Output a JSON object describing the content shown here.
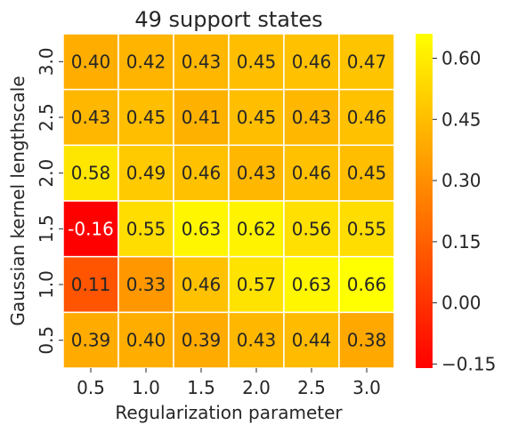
{
  "chart_data": {
    "type": "heatmap",
    "title": "49 support states",
    "xlabel": "Regularization parameter",
    "ylabel": "Gaussian kernel lengthscale",
    "x_categories": [
      "0.5",
      "1.0",
      "1.5",
      "2.0",
      "2.5",
      "3.0"
    ],
    "y_categories": [
      "3.0",
      "2.5",
      "2.0",
      "1.5",
      "1.0",
      "0.5"
    ],
    "values": [
      [
        0.4,
        0.42,
        0.43,
        0.45,
        0.46,
        0.47
      ],
      [
        0.43,
        0.45,
        0.41,
        0.45,
        0.43,
        0.46
      ],
      [
        0.58,
        0.49,
        0.46,
        0.43,
        0.46,
        0.45
      ],
      [
        -0.16,
        0.55,
        0.63,
        0.62,
        0.56,
        0.55
      ],
      [
        0.11,
        0.33,
        0.46,
        0.57,
        0.63,
        0.66
      ],
      [
        0.39,
        0.4,
        0.39,
        0.43,
        0.44,
        0.38
      ]
    ],
    "labels": [
      [
        "0.40",
        "0.42",
        "0.43",
        "0.45",
        "0.46",
        "0.47"
      ],
      [
        "0.43",
        "0.45",
        "0.41",
        "0.45",
        "0.43",
        "0.46"
      ],
      [
        "0.58",
        "0.49",
        "0.46",
        "0.43",
        "0.46",
        "0.45"
      ],
      [
        "-0.16",
        "0.55",
        "0.63",
        "0.62",
        "0.56",
        "0.55"
      ],
      [
        "0.11",
        "0.33",
        "0.46",
        "0.57",
        "0.63",
        "0.66"
      ],
      [
        "0.39",
        "0.40",
        "0.39",
        "0.43",
        "0.44",
        "0.38"
      ]
    ],
    "colormap": "autumn",
    "colorbar_range": [
      -0.16,
      0.66
    ],
    "colorbar_ticks": [
      -0.15,
      0.0,
      0.15,
      0.3,
      0.45,
      0.6
    ],
    "colorbar_tick_labels": [
      "−0.15",
      "0.00",
      "0.15",
      "0.30",
      "0.45",
      "0.60"
    ],
    "colors": {
      "low": "#ff0000",
      "high": "#ffff00",
      "cell_border": "#ffffff"
    }
  }
}
